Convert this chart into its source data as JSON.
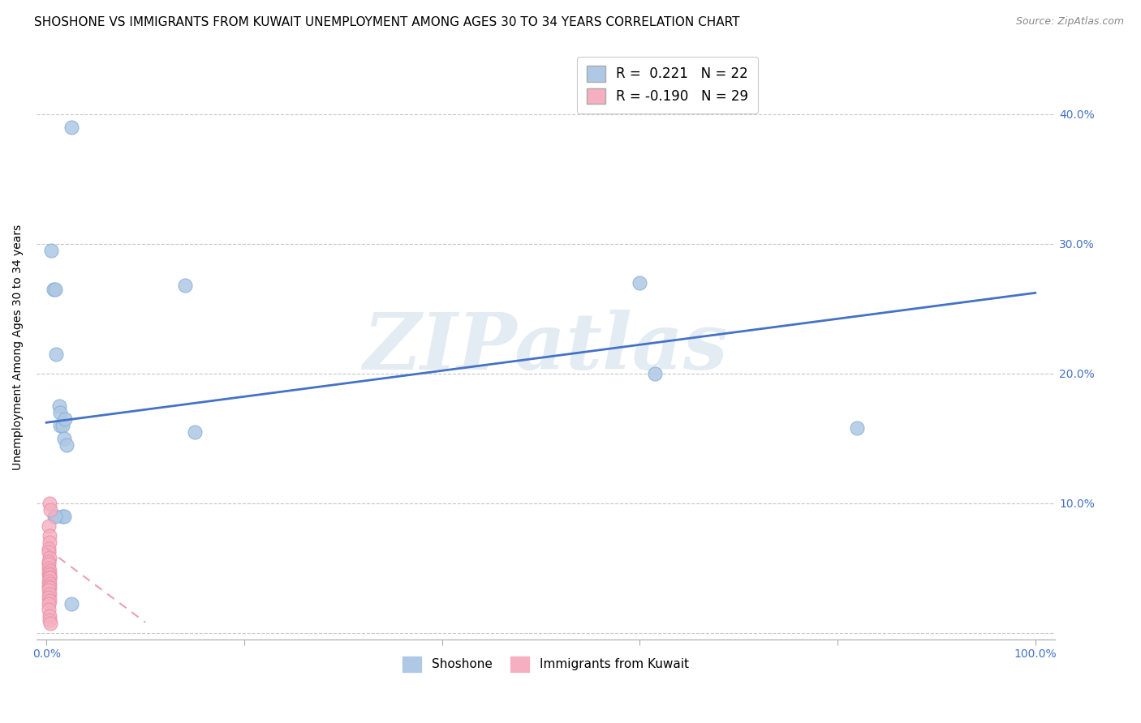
{
  "title": "SHOSHONE VS IMMIGRANTS FROM KUWAIT UNEMPLOYMENT AMONG AGES 30 TO 34 YEARS CORRELATION CHART",
  "source": "Source: ZipAtlas.com",
  "ylabel": "Unemployment Among Ages 30 to 34 years",
  "xlim": [
    -0.01,
    1.02
  ],
  "ylim": [
    -0.005,
    0.445
  ],
  "xticks": [
    0.0,
    0.2,
    0.4,
    0.6,
    0.8,
    1.0
  ],
  "yticks": [
    0.0,
    0.1,
    0.2,
    0.3,
    0.4
  ],
  "shoshone_points": [
    [
      0.005,
      0.295
    ],
    [
      0.007,
      0.265
    ],
    [
      0.009,
      0.265
    ],
    [
      0.025,
      0.39
    ],
    [
      0.01,
      0.215
    ],
    [
      0.013,
      0.175
    ],
    [
      0.014,
      0.17
    ],
    [
      0.014,
      0.16
    ],
    [
      0.016,
      0.16
    ],
    [
      0.019,
      0.165
    ],
    [
      0.018,
      0.15
    ],
    [
      0.02,
      0.145
    ],
    [
      0.016,
      0.09
    ],
    [
      0.018,
      0.09
    ],
    [
      0.14,
      0.268
    ],
    [
      0.008,
      0.09
    ],
    [
      0.009,
      0.09
    ],
    [
      0.6,
      0.27
    ],
    [
      0.615,
      0.2
    ],
    [
      0.82,
      0.158
    ],
    [
      0.025,
      0.022
    ],
    [
      0.15,
      0.155
    ]
  ],
  "kuwait_points": [
    [
      0.003,
      0.1
    ],
    [
      0.004,
      0.095
    ],
    [
      0.002,
      0.082
    ],
    [
      0.003,
      0.075
    ],
    [
      0.003,
      0.07
    ],
    [
      0.002,
      0.065
    ],
    [
      0.002,
      0.062
    ],
    [
      0.003,
      0.058
    ],
    [
      0.002,
      0.055
    ],
    [
      0.002,
      0.053
    ],
    [
      0.002,
      0.05
    ],
    [
      0.003,
      0.048
    ],
    [
      0.002,
      0.046
    ],
    [
      0.003,
      0.045
    ],
    [
      0.003,
      0.043
    ],
    [
      0.003,
      0.042
    ],
    [
      0.002,
      0.04
    ],
    [
      0.003,
      0.038
    ],
    [
      0.002,
      0.036
    ],
    [
      0.003,
      0.035
    ],
    [
      0.002,
      0.033
    ],
    [
      0.003,
      0.03
    ],
    [
      0.002,
      0.027
    ],
    [
      0.003,
      0.025
    ],
    [
      0.002,
      0.022
    ],
    [
      0.002,
      0.018
    ],
    [
      0.003,
      0.013
    ],
    [
      0.003,
      0.01
    ],
    [
      0.004,
      0.007
    ]
  ],
  "shoshone_trend_x": [
    0.0,
    1.0
  ],
  "shoshone_trend_y": [
    0.162,
    0.262
  ],
  "kuwait_trend_x": [
    0.0,
    0.1
  ],
  "kuwait_trend_y": [
    0.065,
    0.008
  ],
  "shoshone_color": "#aec8e5",
  "kuwait_color": "#f5afc0",
  "shoshone_edge": "#8ab0d5",
  "kuwait_edge": "#e890a8",
  "shoshone_trend_color": "#4472c4",
  "kuwait_trend_color": "#e8a0b5",
  "background_color": "#ffffff",
  "watermark_text": "ZIPatlas",
  "legend1_label1": "R =  0.221   N = 22",
  "legend1_label2": "R = -0.190   N = 29",
  "legend_label_shoshone": "Shoshone",
  "legend_label_kuwait": "Immigrants from Kuwait",
  "title_fontsize": 11,
  "axis_label_fontsize": 10,
  "tick_fontsize": 10,
  "source_fontsize": 9
}
